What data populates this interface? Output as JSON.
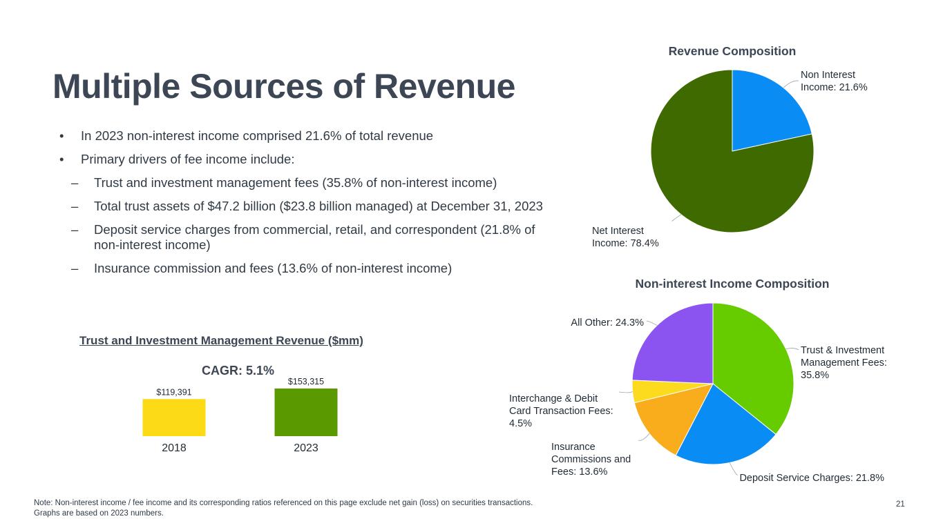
{
  "title": "Multiple Sources of Revenue",
  "bullets": [
    {
      "level": 1,
      "marker": "•",
      "text": "In 2023 non-interest income comprised 21.6% of total revenue"
    },
    {
      "level": 1,
      "marker": "•",
      "text": "Primary drivers of fee income include:"
    },
    {
      "level": 2,
      "marker": "–",
      "text": "Trust and investment management fees (35.8% of non-interest income)"
    },
    {
      "level": 2,
      "marker": "–",
      "text": "Total trust assets of $47.2 billion ($23.8 billion managed)  at December 31, 2023"
    },
    {
      "level": 2,
      "marker": "–",
      "text": "Deposit service charges from commercial, retail, and correspondent (21.8% of non-interest income)"
    },
    {
      "level": 2,
      "marker": "–",
      "text": "Insurance commission and fees (13.6% of non-interest income)"
    }
  ],
  "bar_section": {
    "title": "Trust and Investment Management Revenue ($mm)",
    "cagr": "CAGR: 5.1%"
  },
  "chart_data": [
    {
      "type": "pie",
      "title": "Revenue Composition",
      "slices": [
        {
          "label_lines": [
            "Non Interest",
            "Income: 21.6%"
          ],
          "value": 21.6,
          "color": "#0a8cf5"
        },
        {
          "label_lines": [
            "Net Interest",
            "Income: 78.4%"
          ],
          "value": 78.4,
          "color": "#3e6a00"
        }
      ]
    },
    {
      "type": "pie",
      "title": "Non-interest Income Composition",
      "slices": [
        {
          "label_lines": [
            "Trust & Investment",
            "Management Fees:",
            "35.8%"
          ],
          "value": 35.8,
          "color": "#66cc00"
        },
        {
          "label_lines": [
            "Deposit Service Charges: 21.8%"
          ],
          "value": 21.8,
          "color": "#0a8cf5"
        },
        {
          "label_lines": [
            "Insurance",
            "Commissions and",
            "Fees: 13.6%"
          ],
          "value": 13.6,
          "color": "#f9ad1c"
        },
        {
          "label_lines": [
            "Interchange & Debit",
            "Card Transaction Fees:",
            "4.5%"
          ],
          "value": 4.5,
          "color": "#fcdb1e"
        },
        {
          "label_lines": [
            "All Other: 24.3%"
          ],
          "value": 24.3,
          "color": "#8b54f0"
        }
      ]
    },
    {
      "type": "bar",
      "categories": [
        "2018",
        "2023"
      ],
      "values": [
        119391,
        153315
      ],
      "value_labels": [
        "$119,391",
        "$153,315"
      ],
      "colors": [
        "#fcdb16",
        "#5a9a00"
      ],
      "ylim": [
        0,
        153315
      ]
    }
  ],
  "footnote": {
    "line1": "Note: Non-interest income / fee income and its corresponding ratios referenced on this page exclude net gain (loss) on securities transactions.",
    "line2": "Graphs are based on 2023 numbers."
  },
  "page_number": "21"
}
